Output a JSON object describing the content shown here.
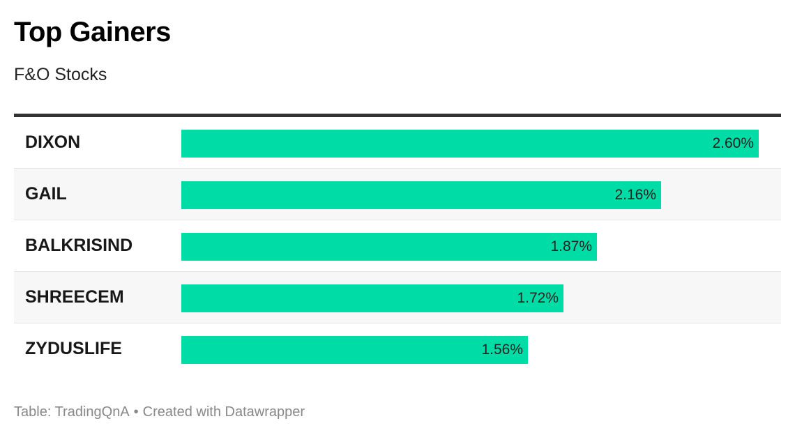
{
  "title": "Top Gainers",
  "subtitle": "F&O Stocks",
  "footer": {
    "source": "Table: TradingQnA",
    "separator": "•",
    "credit": "Created with Datawrapper"
  },
  "colors": {
    "bar": "#00dca6",
    "header_rule": "#333333",
    "alt_row": "#f7f7f7"
  },
  "chart_data": {
    "type": "bar",
    "title": "Top Gainers",
    "subtitle": "F&O Stocks",
    "orientation": "horizontal",
    "categories": [
      "DIXON",
      "GAIL",
      "BALKRISIND",
      "SHREECEM",
      "ZYDUSLIFE"
    ],
    "values": [
      2.6,
      2.16,
      1.87,
      1.72,
      1.56
    ],
    "value_labels": [
      "2.60%",
      "2.16%",
      "1.87%",
      "1.72%",
      "1.56%"
    ],
    "xlim": [
      0,
      2.6
    ],
    "grid": false
  }
}
